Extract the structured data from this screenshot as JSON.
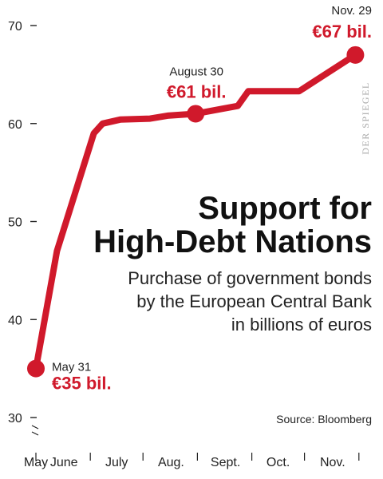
{
  "chart_data": {
    "type": "line",
    "title_lines": [
      "Support for",
      "High-Debt Nations"
    ],
    "subtitle_lines": [
      "Purchase of government bonds",
      "by the European Central Bank",
      "in billions of euros"
    ],
    "source": "Source: Bloomberg",
    "watermark": "DER SPIEGEL",
    "ylim": [
      30,
      70
    ],
    "yticks": [
      30,
      40,
      50,
      60,
      70
    ],
    "ytick_labels": [
      "30",
      "40",
      "50",
      "60",
      "70"
    ],
    "x_range": [
      0,
      185
    ],
    "month_labels": [
      {
        "label": "May",
        "x": 0
      },
      {
        "label": "June",
        "x": 16
      },
      {
        "label": "July",
        "x": 46
      },
      {
        "label": "Aug.",
        "x": 77
      },
      {
        "label": "Sept.",
        "x": 108
      },
      {
        "label": "Oct.",
        "x": 138
      },
      {
        "label": "Nov.",
        "x": 169
      }
    ],
    "month_boundaries": [
      0,
      31,
      61,
      92,
      123,
      153,
      184
    ],
    "series": [
      {
        "color": "#d0192b",
        "points": [
          {
            "x": 0,
            "y": 35
          },
          {
            "x": 12,
            "y": 47
          },
          {
            "x": 33,
            "y": 59
          },
          {
            "x": 38,
            "y": 60
          },
          {
            "x": 48,
            "y": 60.4
          },
          {
            "x": 65,
            "y": 60.5
          },
          {
            "x": 75,
            "y": 60.8
          },
          {
            "x": 91,
            "y": 61
          },
          {
            "x": 106,
            "y": 61.5
          },
          {
            "x": 115,
            "y": 61.8
          },
          {
            "x": 121,
            "y": 63.3
          },
          {
            "x": 136,
            "y": 63.3
          },
          {
            "x": 150,
            "y": 63.3
          },
          {
            "x": 162,
            "y": 64.7
          },
          {
            "x": 182,
            "y": 67
          }
        ]
      }
    ],
    "annotations": [
      {
        "x": 0,
        "y": 35,
        "date": "May 31",
        "value": "€35 bil."
      },
      {
        "x": 91,
        "y": 61,
        "date": "August 30",
        "value": "€61 bil."
      },
      {
        "x": 182,
        "y": 67,
        "date": "Nov. 29",
        "value": "€67 bil."
      }
    ]
  }
}
